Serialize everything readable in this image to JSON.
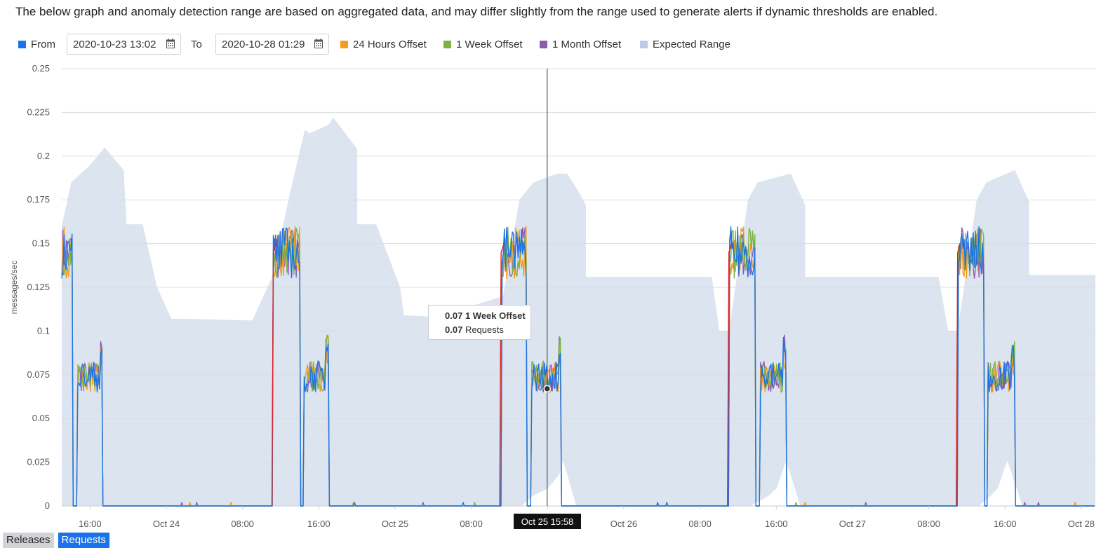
{
  "description": "The below graph and anomaly detection range are based on aggregated data, and may differ slightly from the range used to generate alerts if dynamic thresholds are enabled.",
  "controls": {
    "from_label": "From",
    "from_value": "2020-10-23 13:02",
    "to_label": "To",
    "to_value": "2020-10-28 01:29"
  },
  "colors": {
    "requests": "#1a73e8",
    "offset_24h": "#f59b22",
    "offset_1w": "#7cb342",
    "offset_1m": "#8e5bb3",
    "expected_range": "#b9cbe6",
    "expected_fill": "#dce4ef",
    "spike": "#e02020"
  },
  "legend": [
    {
      "name": "24 Hours Offset",
      "color_key": "offset_24h"
    },
    {
      "name": "1 Week Offset",
      "color_key": "offset_1w"
    },
    {
      "name": "1 Month Offset",
      "color_key": "offset_1m"
    },
    {
      "name": "Expected Range",
      "color_key": "expected_range"
    }
  ],
  "tooltip": {
    "row1_value": "0.07",
    "row1_label": "1 Week Offset",
    "row2_value": "0.07",
    "row2_label": "Requests"
  },
  "cursor_label": "Oct 25 15:58",
  "bottom_tabs": {
    "releases": "Releases",
    "requests": "Requests"
  },
  "chart_data": {
    "type": "line",
    "ylabel": "messages/sec",
    "ylim": [
      0,
      0.25
    ],
    "yticks": [
      "0",
      "0.025",
      "0.05",
      "0.075",
      "0.1",
      "0.125",
      "0.15",
      "0.175",
      "0.2",
      "0.225",
      "0.25"
    ],
    "x_unit": "hours since 2020-10-23 13:02 view start",
    "x_ticks": [
      {
        "t": 2.97,
        "label": "16:00"
      },
      {
        "t": 10.97,
        "label": "Oct 24"
      },
      {
        "t": 18.97,
        "label": "08:00"
      },
      {
        "t": 26.97,
        "label": "16:00"
      },
      {
        "t": 34.97,
        "label": "Oct 25"
      },
      {
        "t": 42.97,
        "label": "08:00"
      },
      {
        "t": 50.97,
        "label": "16:00"
      },
      {
        "t": 58.97,
        "label": "Oct 26"
      },
      {
        "t": 66.97,
        "label": "08:00"
      },
      {
        "t": 74.97,
        "label": "16:00"
      },
      {
        "t": 82.97,
        "label": "Oct 27"
      },
      {
        "t": 90.97,
        "label": "08:00"
      },
      {
        "t": 98.97,
        "label": "16:00"
      },
      {
        "t": 106.97,
        "label": "Oct 28"
      }
    ],
    "xlim": [
      0,
      108.45
    ],
    "cursor_t": 50.93,
    "expected_range": {
      "upper": [
        [
          0,
          0.16
        ],
        [
          1,
          0.185
        ],
        [
          3,
          0.195
        ],
        [
          4.5,
          0.205
        ],
        [
          6.5,
          0.192
        ],
        [
          6.8,
          0.161
        ],
        [
          8.5,
          0.161
        ],
        [
          10,
          0.125
        ],
        [
          11.5,
          0.107
        ],
        [
          13,
          0.107
        ],
        [
          20,
          0.106
        ],
        [
          22,
          0.13
        ],
        [
          24,
          0.18
        ],
        [
          25.5,
          0.215
        ],
        [
          26,
          0.213
        ],
        [
          28,
          0.218
        ],
        [
          28.5,
          0.222
        ],
        [
          31,
          0.204
        ],
        [
          31,
          0.161
        ],
        [
          33,
          0.161
        ],
        [
          35.5,
          0.125
        ],
        [
          35.9,
          0.109
        ],
        [
          39.5,
          0.108
        ],
        [
          46.3,
          0.12
        ],
        [
          48,
          0.175
        ],
        [
          49.5,
          0.185
        ],
        [
          52,
          0.19
        ],
        [
          53,
          0.19
        ],
        [
          54.2,
          0.18
        ],
        [
          55,
          0.172
        ],
        [
          55,
          0.131
        ],
        [
          68,
          0.131
        ],
        [
          68.2,
          0.131
        ],
        [
          69,
          0.1
        ],
        [
          70,
          0.1
        ],
        [
          72,
          0.175
        ],
        [
          73,
          0.185
        ],
        [
          76.5,
          0.19
        ],
        [
          78,
          0.172
        ],
        [
          78,
          0.131
        ],
        [
          92,
          0.131
        ],
        [
          93,
          0.1
        ],
        [
          94,
          0.1
        ],
        [
          96,
          0.175
        ],
        [
          97,
          0.185
        ],
        [
          100,
          0.192
        ],
        [
          101.5,
          0.174
        ],
        [
          101.5,
          0.132
        ],
        [
          108.45,
          0.132
        ]
      ],
      "lower": [
        [
          0,
          0
        ],
        [
          48.2,
          0
        ],
        [
          49.5,
          0.006
        ],
        [
          51,
          0.01
        ],
        [
          52.2,
          0.018
        ],
        [
          52.6,
          0.026
        ],
        [
          54,
          0
        ],
        [
          72.2,
          0
        ],
        [
          73.3,
          0.003
        ],
        [
          74.2,
          0.006
        ],
        [
          75,
          0.01
        ],
        [
          76,
          0.026
        ],
        [
          77.5,
          0
        ],
        [
          96.2,
          0
        ],
        [
          97.3,
          0.005
        ],
        [
          98.2,
          0.01
        ],
        [
          99.2,
          0.026
        ],
        [
          100.8,
          0
        ],
        [
          108.45,
          0
        ]
      ]
    },
    "series": [
      {
        "name": "Requests",
        "color_key": "requests"
      },
      {
        "name": "24 Hours Offset",
        "color_key": "offset_24h"
      },
      {
        "name": "1 Week Offset",
        "color_key": "offset_1w"
      },
      {
        "name": "1 Month Offset",
        "color_key": "offset_1m"
      }
    ],
    "activity_cycles": [
      {
        "high_start": 0,
        "high_end": 1.2,
        "low_start": 1.6,
        "low_end": 4.3,
        "low_peak": 0.097
      },
      {
        "high_start": 22.2,
        "high_end": 25.0,
        "low_start": 25.4,
        "low_end": 28.0,
        "low_peak": 0.1
      },
      {
        "high_start": 46.1,
        "high_end": 48.8,
        "low_start": 49.2,
        "low_end": 52.4,
        "low_peak": 0.097
      },
      {
        "high_start": 70.0,
        "high_end": 72.8,
        "low_start": 73.2,
        "low_end": 76.0,
        "low_peak": 0.098
      },
      {
        "high_start": 94.0,
        "high_end": 96.8,
        "low_start": 97.2,
        "low_end": 100.0,
        "low_peak": 0.094
      }
    ],
    "high_level": 0.145,
    "low_level": 0.074,
    "hover_point": {
      "t": 50.93,
      "v": 0.067
    }
  }
}
